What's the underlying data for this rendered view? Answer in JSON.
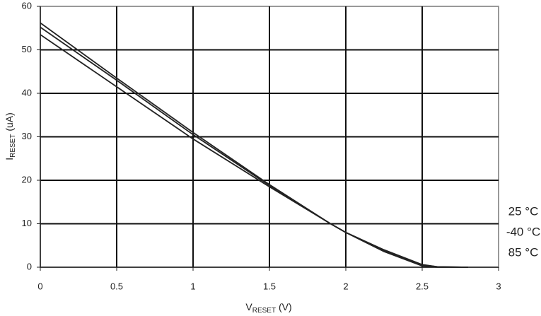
{
  "chart_data": {
    "type": "line",
    "x_label": {
      "main": "V",
      "sub": "RESET",
      "unit": " (V)"
    },
    "y_label": {
      "main": "I",
      "sub": "RESET",
      "unit": " (uA)"
    },
    "x": [
      0,
      0.5,
      1,
      1.5,
      1.9,
      2,
      2.25,
      2.5,
      2.6,
      2.8
    ],
    "series": [
      {
        "name": "25 °C",
        "color": "#222222",
        "values": [
          56.2,
          43.5,
          31,
          19,
          10,
          8,
          4,
          0.6,
          0.1,
          0
        ]
      },
      {
        "name": "-40 °C",
        "color": "#222222",
        "values": [
          55.2,
          43,
          30.5,
          18.8,
          10,
          8,
          3.8,
          0.5,
          0.1,
          0
        ]
      },
      {
        "name": "85 °C",
        "color": "#222222",
        "values": [
          53.5,
          41.5,
          29.5,
          18.5,
          10,
          8,
          3.6,
          0.3,
          0,
          0
        ]
      }
    ],
    "xlim": [
      0,
      3
    ],
    "xticks": [
      0,
      0.5,
      1,
      1.5,
      2,
      2.5,
      3
    ],
    "ylim": [
      0,
      60
    ],
    "yticks": [
      0,
      10,
      20,
      30,
      40,
      50,
      60
    ],
    "grid": true
  }
}
